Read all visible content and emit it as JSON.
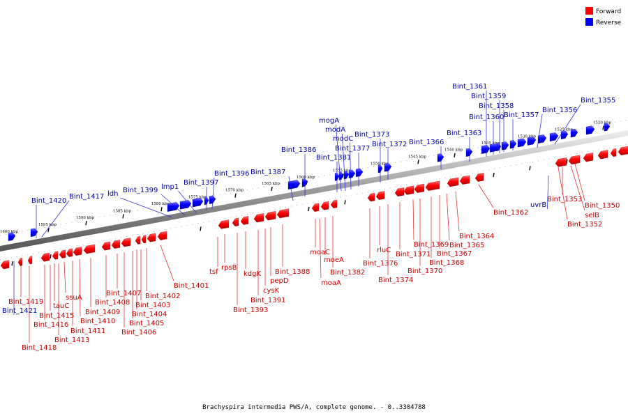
{
  "caption": "Brachyspira intermedia PWS/A, complete genome. - 0..3304788",
  "legend": [
    {
      "label": "Forward",
      "color": "#ff0000"
    },
    {
      "label": "Reverse",
      "color": "#0000ff"
    }
  ],
  "colors": {
    "forward": "#ff0000",
    "reverse": "#0000ff",
    "forward_label": "#cc0000",
    "reverse_label": "#0000aa",
    "axis": "#777777"
  },
  "axis_ticks": [
    "1520 kbp",
    "1525 kbp",
    "1530 kbp",
    "1535 kbp",
    "1540 kbp",
    "1545 kbp",
    "1550 kbp",
    "1555 kbp",
    "1560 kbp",
    "1565 kbp",
    "1570 kbp",
    "1575 kbp",
    "1580 kbp",
    "1585 kbp",
    "1590 kbp",
    "1595 kbp",
    "1600 kbp"
  ],
  "reverse_labels": [
    "Bint_1355",
    "Bint_1356",
    "Bint_1357",
    "Bint_1358",
    "Bint_1359",
    "Bint_1360",
    "Bint_1361",
    "Bint_1363",
    "Bint_1366",
    "Bint_1372",
    "Bint_1373",
    "Bint_1377",
    "modC",
    "modA",
    "mogA",
    "Bint_1381",
    "Bint_1386",
    "Bint_1387",
    "Bint_1396",
    "Bint_1397",
    "lmp1",
    "Bint_1399",
    "ldh",
    "Bint_1417",
    "Bint_1420",
    "uvrB",
    "Bint_1421"
  ],
  "forward_labels": [
    "Bint_1350",
    "selB",
    "Bint_1352",
    "Bint_1353",
    "Bint_1362",
    "Bint_1364",
    "Bint_1365",
    "Bint_1367",
    "Bint_1368",
    "Bint_1369",
    "Bint_1370",
    "Bint_1371",
    "rluC",
    "Bint_1374",
    "Bint_1376",
    "Bint_1382",
    "moeA",
    "moaA",
    "moaC",
    "Bint_1388",
    "pepD",
    "cysK",
    "Bint_1391",
    "kdgK",
    "Bint_1393",
    "rpsB",
    "tsf",
    "Bint_1401",
    "Bint_1402",
    "Bint_1403",
    "Bint_1404",
    "Bint_1405",
    "Bint_1406",
    "Bint_1407",
    "Bint_1408",
    "Bint_1409",
    "Bint_1410",
    "Bint_1411",
    "ssuA",
    "Bint_1413",
    "tauC",
    "Bint_1415",
    "Bint_1416",
    "Bint_1418",
    "Bint_1419"
  ]
}
